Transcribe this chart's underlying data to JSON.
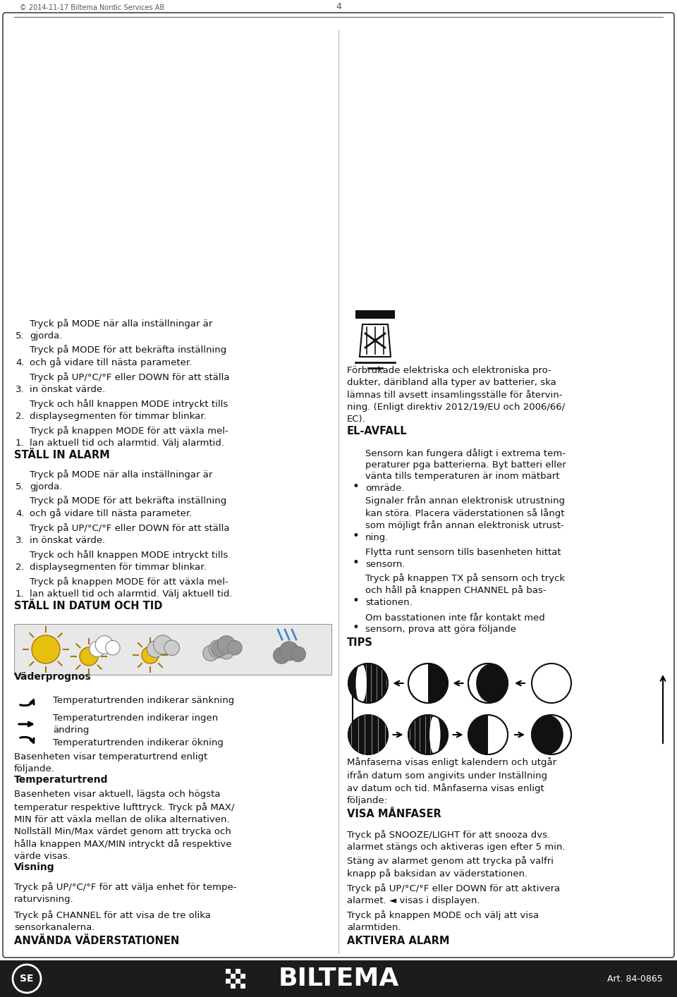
{
  "page_bg": "#ffffff",
  "header_bg": "#1c1c1c",
  "header_text_color": "#ffffff",
  "header_brand": "█BILTEMA",
  "header_art": "Art. 84-0865",
  "header_se": "SE",
  "footer_text": "© 2014-11-17 Biltema Nordic Services AB",
  "footer_page": "4"
}
